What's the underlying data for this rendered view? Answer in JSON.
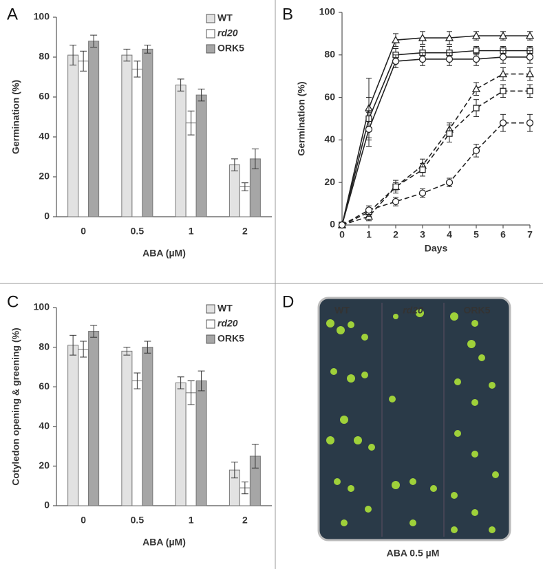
{
  "chart_data": [
    {
      "type": "bar",
      "panel": "A",
      "xlabel": "ABA (µM)",
      "ylabel": "Germination (%)",
      "categories": [
        "0",
        "0.5",
        "1",
        "2"
      ],
      "ylim": [
        0,
        100
      ],
      "yticks": [
        0,
        20,
        40,
        60,
        80,
        100
      ],
      "series": [
        {
          "name": "WT",
          "color": "#e2e2e2",
          "values": [
            81,
            81,
            66,
            26
          ],
          "errors": [
            5,
            3,
            3,
            3
          ]
        },
        {
          "name": "rd20",
          "color": "#ffffff",
          "font_style": "italic",
          "values": [
            78,
            74,
            47,
            15
          ],
          "errors": [
            5,
            4,
            6,
            2
          ]
        },
        {
          "name": "ORK5",
          "color": "#a6a6a6",
          "values": [
            88,
            84,
            61,
            29
          ],
          "errors": [
            3,
            2,
            3,
            5
          ]
        }
      ]
    },
    {
      "type": "line",
      "panel": "B",
      "xlabel": "Days",
      "ylabel": "Germination (%)",
      "x": [
        0,
        1,
        2,
        3,
        4,
        5,
        6,
        7
      ],
      "xlim": [
        0,
        7
      ],
      "xticks": [
        0,
        1,
        2,
        3,
        4,
        5,
        6,
        7
      ],
      "ylim": [
        0,
        100
      ],
      "yticks": [
        0,
        20,
        40,
        60,
        80,
        100
      ],
      "series": [
        {
          "color": "#222",
          "marker": "triangle",
          "dash": false,
          "values": [
            0,
            55,
            87,
            88,
            88,
            89,
            89,
            89
          ],
          "errors": [
            0,
            14,
            3,
            3,
            3,
            2,
            2,
            2
          ]
        },
        {
          "color": "#222",
          "marker": "square",
          "dash": false,
          "values": [
            0,
            50,
            80,
            81,
            81,
            82,
            82,
            82
          ],
          "errors": [
            0,
            10,
            3,
            3,
            3,
            2,
            2,
            2
          ]
        },
        {
          "color": "#222",
          "marker": "circle",
          "dash": false,
          "values": [
            0,
            45,
            77,
            78,
            78,
            78,
            79,
            79
          ],
          "errors": [
            0,
            8,
            3,
            3,
            3,
            3,
            3,
            3
          ]
        },
        {
          "color": "#222",
          "marker": "triangle",
          "dash": true,
          "values": [
            0,
            4,
            18,
            28,
            45,
            64,
            71,
            71
          ],
          "errors": [
            0,
            2,
            2,
            3,
            3,
            3,
            3,
            3
          ]
        },
        {
          "color": "#222",
          "marker": "square",
          "dash": true,
          "values": [
            0,
            6,
            18,
            26,
            43,
            55,
            63,
            63
          ],
          "errors": [
            0,
            2,
            3,
            3,
            4,
            4,
            3,
            3
          ]
        },
        {
          "color": "#222",
          "marker": "circle",
          "dash": true,
          "values": [
            0,
            7,
            11,
            15,
            20,
            35,
            48,
            48
          ],
          "errors": [
            0,
            2,
            2,
            2,
            2,
            3,
            4,
            4
          ]
        }
      ]
    },
    {
      "type": "bar",
      "panel": "C",
      "xlabel": "ABA (µM)",
      "ylabel": "Cotyledon opening & greening (%)",
      "categories": [
        "0",
        "0.5",
        "1",
        "2"
      ],
      "ylim": [
        0,
        100
      ],
      "yticks": [
        0,
        20,
        40,
        60,
        80,
        100
      ],
      "series": [
        {
          "name": "WT",
          "color": "#e2e2e2",
          "values": [
            81,
            78,
            62,
            18
          ],
          "errors": [
            5,
            2,
            3,
            4
          ]
        },
        {
          "name": "rd20",
          "color": "#ffffff",
          "font_style": "italic",
          "values": [
            79,
            63,
            57,
            9
          ],
          "errors": [
            4,
            4,
            6,
            3
          ]
        },
        {
          "name": "ORK5",
          "color": "#a6a6a6",
          "values": [
            88,
            80,
            63,
            25
          ],
          "errors": [
            3,
            3,
            5,
            6
          ]
        }
      ]
    }
  ],
  "photo": {
    "panel": "D",
    "labels": [
      "WT",
      "rd20",
      "ORK5"
    ],
    "caption": "ABA 0.5 µM"
  }
}
